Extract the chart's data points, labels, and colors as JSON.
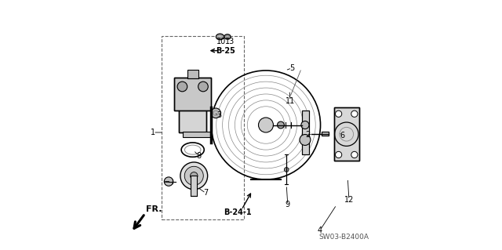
{
  "bg_color": "#ffffff",
  "line_color": "#000000",
  "gray_color": "#888888",
  "light_gray": "#cccccc",
  "title_code": "SW03-B2400A",
  "fr_label": "FR.",
  "figsize": [
    6.4,
    3.19
  ],
  "dpi": 100
}
